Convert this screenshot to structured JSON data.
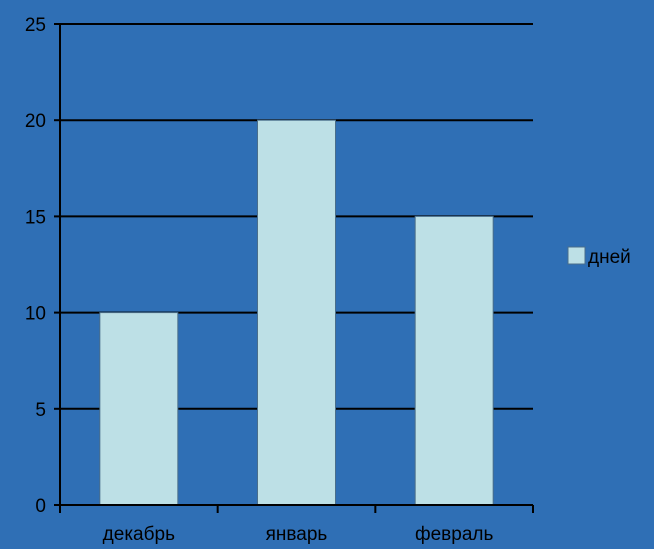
{
  "chart_data": {
    "type": "bar",
    "categories": [
      "декабрь",
      "январь",
      "февраль"
    ],
    "series": [
      {
        "name": "дней",
        "values": [
          10,
          20,
          15
        ]
      }
    ],
    "ylim": [
      0,
      25
    ],
    "yticks": [
      0,
      5,
      10,
      15,
      20,
      25
    ],
    "grid": true,
    "legend": "right",
    "title": "",
    "xlabel": "",
    "ylabel": ""
  },
  "colors": {
    "background": "#2f6fb5",
    "bar": "#bde0e6",
    "bar_border": "#4a6e8a",
    "grid": "#000000",
    "text": "#000000"
  }
}
